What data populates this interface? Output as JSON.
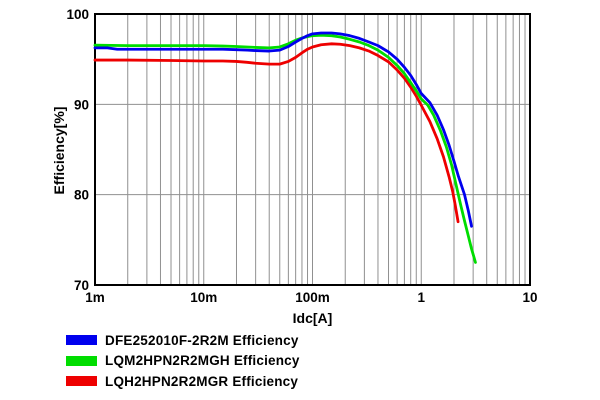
{
  "chart_data": {
    "type": "line",
    "title": "",
    "xlabel": "Idc[A]",
    "ylabel": "Efficiency[%]",
    "x_scale": "log",
    "xlim": [
      0.001,
      10
    ],
    "ylim": [
      70,
      100
    ],
    "grid": "on",
    "legend_position": "bottom-left",
    "colors": {
      "grid": "#909090",
      "frame": "#000000",
      "text": "#000000",
      "background": "#ffffff"
    },
    "x_ticks": [
      {
        "value": 0.001,
        "label": "1m"
      },
      {
        "value": 0.01,
        "label": "10m"
      },
      {
        "value": 0.1,
        "label": "100m"
      },
      {
        "value": 1,
        "label": "1"
      },
      {
        "value": 10,
        "label": "10"
      }
    ],
    "y_ticks": [
      {
        "value": 100,
        "label": "100"
      },
      {
        "value": 90,
        "label": "90"
      },
      {
        "value": 80,
        "label": "80"
      },
      {
        "value": 70,
        "label": "70"
      }
    ],
    "series": [
      {
        "name": "DFE252010F-2R2M Efficiency",
        "color": "#0000ee",
        "points": [
          [
            0.001,
            96.25
          ],
          [
            0.0013,
            96.25
          ],
          [
            0.0016,
            96.1
          ],
          [
            0.002,
            96.1
          ],
          [
            0.003,
            96.1
          ],
          [
            0.005,
            96.1
          ],
          [
            0.007,
            96.1
          ],
          [
            0.01,
            96.1
          ],
          [
            0.015,
            96.1
          ],
          [
            0.02,
            96.05
          ],
          [
            0.025,
            96.0
          ],
          [
            0.03,
            95.95
          ],
          [
            0.04,
            95.9
          ],
          [
            0.05,
            96.0
          ],
          [
            0.06,
            96.4
          ],
          [
            0.07,
            96.9
          ],
          [
            0.08,
            97.3
          ],
          [
            0.09,
            97.6
          ],
          [
            0.1,
            97.8
          ],
          [
            0.12,
            97.9
          ],
          [
            0.15,
            97.9
          ],
          [
            0.18,
            97.8
          ],
          [
            0.22,
            97.6
          ],
          [
            0.27,
            97.3
          ],
          [
            0.33,
            96.9
          ],
          [
            0.4,
            96.5
          ],
          [
            0.5,
            95.8
          ],
          [
            0.6,
            95.0
          ],
          [
            0.7,
            94.1
          ],
          [
            0.8,
            93.2
          ],
          [
            0.9,
            92.2
          ],
          [
            1.0,
            91.2
          ],
          [
            1.2,
            90.2
          ],
          [
            1.4,
            88.8
          ],
          [
            1.6,
            87.2
          ],
          [
            1.8,
            85.5
          ],
          [
            2.0,
            83.7
          ],
          [
            2.2,
            82.0
          ],
          [
            2.5,
            80.0
          ],
          [
            2.7,
            78.3
          ],
          [
            2.9,
            76.5
          ]
        ]
      },
      {
        "name": "LQM2HPN2R2MGH Efficiency",
        "color": "#00dd00",
        "points": [
          [
            0.001,
            96.55
          ],
          [
            0.002,
            96.5
          ],
          [
            0.005,
            96.5
          ],
          [
            0.01,
            96.5
          ],
          [
            0.015,
            96.45
          ],
          [
            0.02,
            96.4
          ],
          [
            0.03,
            96.3
          ],
          [
            0.04,
            96.25
          ],
          [
            0.05,
            96.35
          ],
          [
            0.06,
            96.7
          ],
          [
            0.07,
            97.1
          ],
          [
            0.08,
            97.35
          ],
          [
            0.09,
            97.5
          ],
          [
            0.1,
            97.6
          ],
          [
            0.12,
            97.65
          ],
          [
            0.15,
            97.6
          ],
          [
            0.18,
            97.45
          ],
          [
            0.22,
            97.2
          ],
          [
            0.27,
            96.9
          ],
          [
            0.33,
            96.5
          ],
          [
            0.4,
            96.0
          ],
          [
            0.5,
            95.2
          ],
          [
            0.6,
            94.3
          ],
          [
            0.7,
            93.4
          ],
          [
            0.8,
            92.4
          ],
          [
            0.9,
            91.5
          ],
          [
            1.0,
            90.6
          ],
          [
            1.15,
            89.9
          ],
          [
            1.3,
            88.8
          ],
          [
            1.5,
            87.1
          ],
          [
            1.7,
            85.3
          ],
          [
            1.9,
            83.3
          ],
          [
            2.1,
            81.0
          ],
          [
            2.3,
            78.9
          ],
          [
            2.5,
            77.1
          ],
          [
            2.7,
            75.5
          ],
          [
            2.9,
            74.0
          ],
          [
            3.05,
            73.1
          ],
          [
            3.15,
            72.5
          ]
        ]
      },
      {
        "name": "LQH2HPN2R2MGR Efficiency",
        "color": "#ee0000",
        "points": [
          [
            0.001,
            94.9
          ],
          [
            0.002,
            94.9
          ],
          [
            0.005,
            94.85
          ],
          [
            0.01,
            94.8
          ],
          [
            0.015,
            94.8
          ],
          [
            0.02,
            94.75
          ],
          [
            0.025,
            94.65
          ],
          [
            0.03,
            94.55
          ],
          [
            0.04,
            94.45
          ],
          [
            0.05,
            94.45
          ],
          [
            0.06,
            94.75
          ],
          [
            0.07,
            95.2
          ],
          [
            0.08,
            95.7
          ],
          [
            0.09,
            96.1
          ],
          [
            0.1,
            96.35
          ],
          [
            0.12,
            96.6
          ],
          [
            0.15,
            96.7
          ],
          [
            0.18,
            96.65
          ],
          [
            0.22,
            96.5
          ],
          [
            0.27,
            96.25
          ],
          [
            0.33,
            95.9
          ],
          [
            0.4,
            95.4
          ],
          [
            0.5,
            94.7
          ],
          [
            0.6,
            93.8
          ],
          [
            0.7,
            92.9
          ],
          [
            0.8,
            91.9
          ],
          [
            0.9,
            90.9
          ],
          [
            1.0,
            89.9
          ],
          [
            1.2,
            88.1
          ],
          [
            1.4,
            86.2
          ],
          [
            1.6,
            84.2
          ],
          [
            1.8,
            82.0
          ],
          [
            1.95,
            80.3
          ],
          [
            2.05,
            78.9
          ],
          [
            2.18,
            77.0
          ]
        ]
      }
    ]
  }
}
